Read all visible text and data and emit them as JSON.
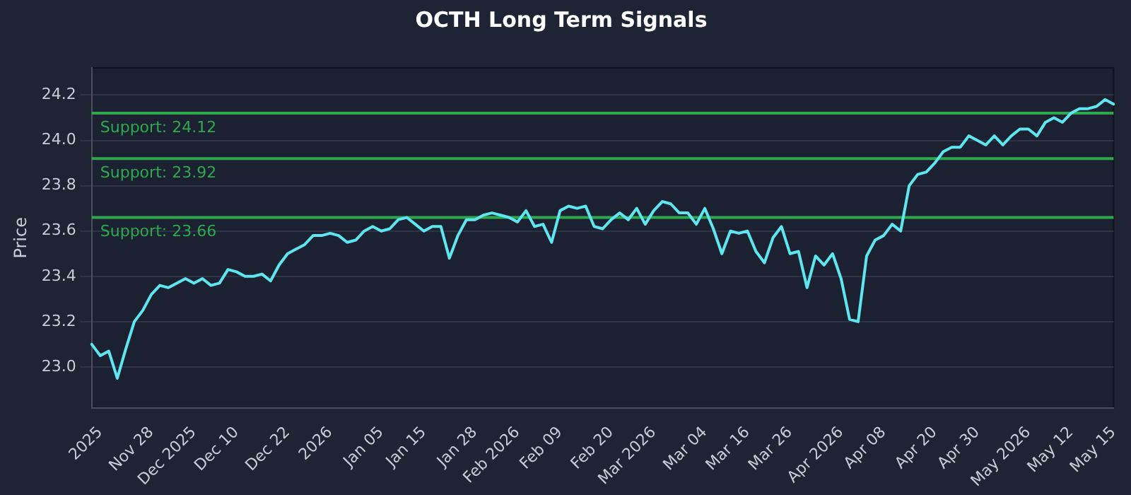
{
  "chart_data": {
    "type": "line",
    "title": "OCTH Long Term Signals",
    "ylabel": "Price",
    "color": "#5ee6f0",
    "grid": "y",
    "legend": false,
    "marker": "none",
    "line_style": "solid",
    "categories": [
      null,
      "2025",
      null,
      null,
      null,
      null,
      null,
      "Nov 28",
      null,
      null,
      null,
      null,
      "Dec 2025",
      null,
      null,
      null,
      null,
      "Dec 10",
      null,
      null,
      null,
      null,
      null,
      "Dec 22",
      null,
      null,
      null,
      null,
      "2026",
      null,
      null,
      null,
      null,
      null,
      "Jan 05",
      null,
      null,
      null,
      null,
      "Jan 15",
      null,
      null,
      null,
      null,
      null,
      "Jan 28",
      null,
      null,
      null,
      null,
      "Feb 2026",
      null,
      null,
      null,
      null,
      "Feb 09",
      null,
      null,
      null,
      null,
      null,
      "Feb 20",
      null,
      null,
      null,
      null,
      "Mar 2026",
      null,
      null,
      null,
      null,
      null,
      "Mar 04",
      null,
      null,
      null,
      null,
      "Mar 16",
      null,
      null,
      null,
      null,
      "Mar 26",
      null,
      null,
      null,
      null,
      null,
      "Apr 2026",
      null,
      null,
      null,
      null,
      "Apr 08",
      null,
      null,
      null,
      null,
      null,
      "Apr 20",
      null,
      null,
      null,
      null,
      "Apr 30",
      null,
      null,
      null,
      null,
      null,
      "May 2026",
      null,
      null,
      null,
      null,
      "May 12",
      null,
      null,
      null,
      null,
      "May 15"
    ],
    "values": [
      23.1,
      23.05,
      23.07,
      22.95,
      23.08,
      23.2,
      23.25,
      23.32,
      23.36,
      23.35,
      23.37,
      23.39,
      23.37,
      23.39,
      23.36,
      23.37,
      23.43,
      23.42,
      23.4,
      23.4,
      23.41,
      23.38,
      23.45,
      23.5,
      23.52,
      23.54,
      23.58,
      23.58,
      23.59,
      23.58,
      23.55,
      23.56,
      23.6,
      23.62,
      23.6,
      23.61,
      23.65,
      23.66,
      23.63,
      23.6,
      23.62,
      23.62,
      23.48,
      23.58,
      23.65,
      23.65,
      23.67,
      23.68,
      23.67,
      23.66,
      23.64,
      23.69,
      23.62,
      23.63,
      23.55,
      23.69,
      23.71,
      23.7,
      23.71,
      23.62,
      23.61,
      23.65,
      23.68,
      23.65,
      23.7,
      23.63,
      23.69,
      23.73,
      23.72,
      23.68,
      23.68,
      23.63,
      23.7,
      23.61,
      23.5,
      23.6,
      23.59,
      23.6,
      23.51,
      23.46,
      23.57,
      23.62,
      23.5,
      23.51,
      23.35,
      23.49,
      23.45,
      23.5,
      23.39,
      23.21,
      23.2,
      23.49,
      23.56,
      23.58,
      23.63,
      23.6,
      23.8,
      23.85,
      23.86,
      23.9,
      23.95,
      23.97,
      23.97,
      24.02,
      24.0,
      23.98,
      24.02,
      23.98,
      24.02,
      24.05,
      24.05,
      24.02,
      24.08,
      24.1,
      24.08,
      24.12,
      24.14,
      24.14,
      24.15,
      24.18,
      24.16
    ],
    "ylim": [
      22.82,
      24.32
    ],
    "yticks": [
      {
        "value": 23,
        "label": "23.0"
      },
      23.2,
      23.4,
      23.6,
      23.8,
      {
        "value": 24,
        "label": "24.0"
      },
      24.2
    ],
    "ref_lines": [
      {
        "axis": "y",
        "value": 24.12,
        "label": "Support: 24.12",
        "color": "#2ea84f"
      },
      {
        "axis": "y",
        "value": 23.92,
        "label": "Support: 23.92",
        "color": "#2ea84f"
      },
      {
        "axis": "y",
        "value": 23.66,
        "label": "Support: 23.66",
        "color": "#2ea84f"
      }
    ]
  }
}
